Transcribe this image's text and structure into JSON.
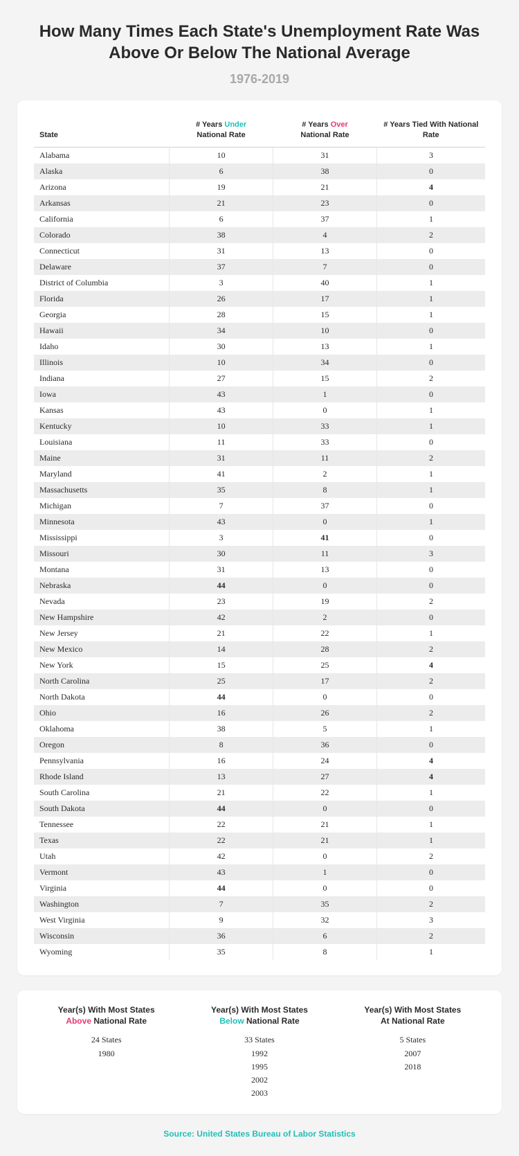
{
  "title": "How Many Times Each State's Unemployment Rate Was Above Or Below The National Average",
  "subtitle": "1976-2019",
  "colors": {
    "accent_under": "#1fbfb8",
    "accent_over": "#e63972",
    "bg": "#f4f4f4",
    "card": "#ffffff",
    "stripe": "#ececec",
    "muted": "#a8a8a8"
  },
  "columns": {
    "state": "State",
    "under_pre": "# Years ",
    "under_word": "Under",
    "over_pre": "# Years ",
    "over_word": "Over",
    "nat_rate": "National Rate",
    "tied": "# Years Tied With National Rate"
  },
  "bold_rule": {
    "under": 44,
    "over": 41,
    "tied": 4
  },
  "rows": [
    {
      "s": "Alabama",
      "u": 10,
      "o": 31,
      "t": 3
    },
    {
      "s": "Alaska",
      "u": 6,
      "o": 38,
      "t": 0
    },
    {
      "s": "Arizona",
      "u": 19,
      "o": 21,
      "t": 4
    },
    {
      "s": "Arkansas",
      "u": 21,
      "o": 23,
      "t": 0
    },
    {
      "s": "California",
      "u": 6,
      "o": 37,
      "t": 1
    },
    {
      "s": "Colorado",
      "u": 38,
      "o": 4,
      "t": 2
    },
    {
      "s": "Connecticut",
      "u": 31,
      "o": 13,
      "t": 0
    },
    {
      "s": "Delaware",
      "u": 37,
      "o": 7,
      "t": 0
    },
    {
      "s": "District of Columbia",
      "u": 3,
      "o": 40,
      "t": 1
    },
    {
      "s": "Florida",
      "u": 26,
      "o": 17,
      "t": 1
    },
    {
      "s": "Georgia",
      "u": 28,
      "o": 15,
      "t": 1
    },
    {
      "s": "Hawaii",
      "u": 34,
      "o": 10,
      "t": 0
    },
    {
      "s": "Idaho",
      "u": 30,
      "o": 13,
      "t": 1
    },
    {
      "s": "Illinois",
      "u": 10,
      "o": 34,
      "t": 0
    },
    {
      "s": "Indiana",
      "u": 27,
      "o": 15,
      "t": 2
    },
    {
      "s": "Iowa",
      "u": 43,
      "o": 1,
      "t": 0
    },
    {
      "s": "Kansas",
      "u": 43,
      "o": 0,
      "t": 1
    },
    {
      "s": "Kentucky",
      "u": 10,
      "o": 33,
      "t": 1
    },
    {
      "s": "Louisiana",
      "u": 11,
      "o": 33,
      "t": 0
    },
    {
      "s": "Maine",
      "u": 31,
      "o": 11,
      "t": 2
    },
    {
      "s": "Maryland",
      "u": 41,
      "o": 2,
      "t": 1
    },
    {
      "s": "Massachusetts",
      "u": 35,
      "o": 8,
      "t": 1
    },
    {
      "s": "Michigan",
      "u": 7,
      "o": 37,
      "t": 0
    },
    {
      "s": "Minnesota",
      "u": 43,
      "o": 0,
      "t": 1
    },
    {
      "s": "Mississippi",
      "u": 3,
      "o": 41,
      "t": 0
    },
    {
      "s": "Missouri",
      "u": 30,
      "o": 11,
      "t": 3
    },
    {
      "s": "Montana",
      "u": 31,
      "o": 13,
      "t": 0
    },
    {
      "s": "Nebraska",
      "u": 44,
      "o": 0,
      "t": 0
    },
    {
      "s": "Nevada",
      "u": 23,
      "o": 19,
      "t": 2
    },
    {
      "s": "New Hampshire",
      "u": 42,
      "o": 2,
      "t": 0
    },
    {
      "s": "New Jersey",
      "u": 21,
      "o": 22,
      "t": 1
    },
    {
      "s": "New Mexico",
      "u": 14,
      "o": 28,
      "t": 2
    },
    {
      "s": "New York",
      "u": 15,
      "o": 25,
      "t": 4
    },
    {
      "s": "North Carolina",
      "u": 25,
      "o": 17,
      "t": 2
    },
    {
      "s": "North Dakota",
      "u": 44,
      "o": 0,
      "t": 0
    },
    {
      "s": "Ohio",
      "u": 16,
      "o": 26,
      "t": 2
    },
    {
      "s": "Oklahoma",
      "u": 38,
      "o": 5,
      "t": 1
    },
    {
      "s": "Oregon",
      "u": 8,
      "o": 36,
      "t": 0
    },
    {
      "s": "Pennsylvania",
      "u": 16,
      "o": 24,
      "t": 4
    },
    {
      "s": "Rhode Island",
      "u": 13,
      "o": 27,
      "t": 4
    },
    {
      "s": "South Carolina",
      "u": 21,
      "o": 22,
      "t": 1
    },
    {
      "s": "South Dakota",
      "u": 44,
      "o": 0,
      "t": 0
    },
    {
      "s": "Tennessee",
      "u": 22,
      "o": 21,
      "t": 1
    },
    {
      "s": "Texas",
      "u": 22,
      "o": 21,
      "t": 1
    },
    {
      "s": "Utah",
      "u": 42,
      "o": 0,
      "t": 2
    },
    {
      "s": "Vermont",
      "u": 43,
      "o": 1,
      "t": 0
    },
    {
      "s": "Virginia",
      "u": 44,
      "o": 0,
      "t": 0
    },
    {
      "s": "Washington",
      "u": 7,
      "o": 35,
      "t": 2
    },
    {
      "s": "West Virginia",
      "u": 9,
      "o": 32,
      "t": 3
    },
    {
      "s": "Wisconsin",
      "u": 36,
      "o": 6,
      "t": 2
    },
    {
      "s": "Wyoming",
      "u": 35,
      "o": 8,
      "t": 1
    }
  ],
  "summary": {
    "above": {
      "head_l1": "Year(s) With Most States",
      "head_word": "Above",
      "head_l2": " National Rate",
      "count": "24 States",
      "years": [
        "1980"
      ]
    },
    "below": {
      "head_l1": "Year(s) With Most States",
      "head_word": "Below",
      "head_l2": " National Rate",
      "count": "33 States",
      "years": [
        "1992",
        "1995",
        "2002",
        "2003"
      ]
    },
    "at": {
      "head_l1": "Year(s) With Most States",
      "head_l2": "At National Rate",
      "count": "5 States",
      "years": [
        "2007",
        "2018"
      ]
    }
  },
  "source": "Source: United States Bureau of Labor Statistics"
}
